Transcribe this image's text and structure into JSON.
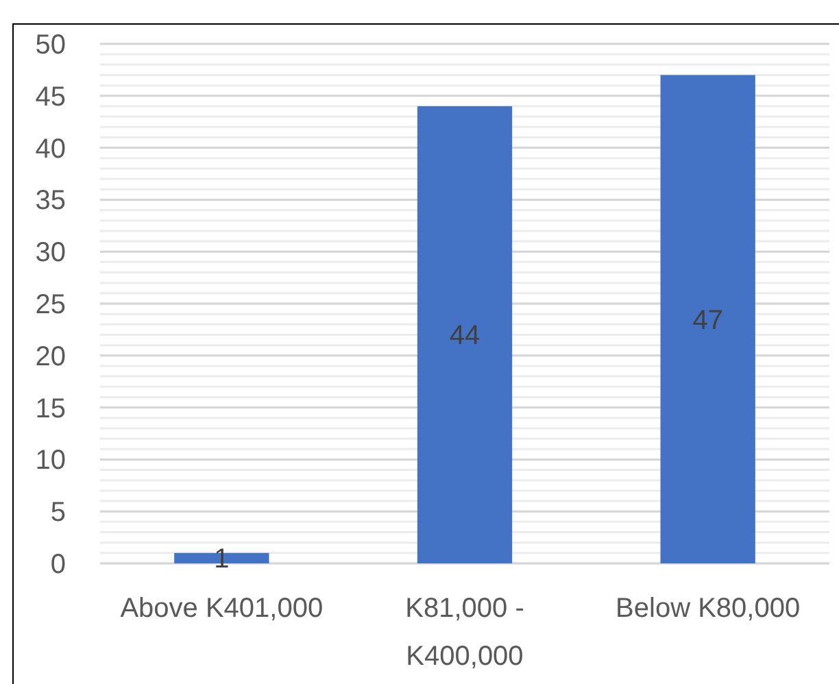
{
  "chart_data": {
    "type": "bar",
    "categories": [
      "Above K401,000",
      "K81,000 - K400,000",
      "Below K80,000"
    ],
    "values": [
      1,
      44,
      47
    ],
    "color": "#4472c4",
    "ylim": [
      0,
      50
    ],
    "yticks": [
      0,
      5,
      10,
      15,
      20,
      25,
      30,
      35,
      40,
      45,
      50
    ],
    "grid": true,
    "data_labels": true
  }
}
